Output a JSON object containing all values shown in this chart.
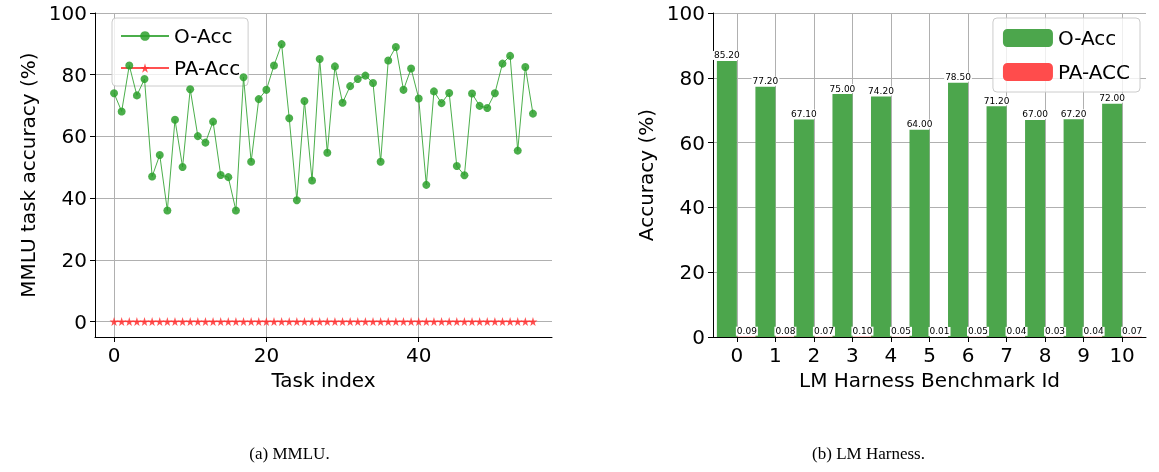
{
  "chart_data": [
    {
      "type": "line",
      "xlabel": "Task index",
      "ylabel": "MMLU task accuracy (%)",
      "annotations": [
        "(a) MMLU."
      ],
      "xlim": [
        -2.5,
        57.5
      ],
      "xticks": [
        0,
        20,
        40
      ],
      "ylim": [
        -5,
        100
      ],
      "yticks": [
        0,
        20,
        40,
        60,
        80,
        100
      ],
      "grid": true,
      "legend": "top left",
      "line_style": "solid",
      "x": [
        0,
        1,
        2,
        3,
        4,
        5,
        6,
        7,
        8,
        9,
        10,
        11,
        12,
        13,
        14,
        15,
        16,
        17,
        18,
        19,
        20,
        21,
        22,
        23,
        24,
        25,
        26,
        27,
        28,
        29,
        30,
        31,
        32,
        33,
        34,
        35,
        36,
        37,
        38,
        39,
        40,
        41,
        42,
        43,
        44,
        45,
        46,
        47,
        48,
        49,
        50,
        51,
        52,
        53,
        54,
        55
      ],
      "series": [
        {
          "name": "O-Acc",
          "color": "#2ca02c",
          "marker": "circle",
          "values": [
            74.0,
            68.1,
            83.0,
            73.3,
            78.6,
            47.0,
            54.0,
            36.0,
            65.4,
            50.1,
            75.3,
            60.1,
            58.0,
            64.8,
            47.5,
            46.8,
            36.0,
            79.2,
            51.8,
            72.1,
            75.1,
            83.0,
            89.9,
            65.9,
            39.3,
            71.5,
            45.7,
            85.1,
            54.7,
            82.7,
            70.9,
            76.3,
            78.6,
            79.7,
            77.3,
            51.8,
            84.6,
            89.0,
            75.1,
            82.0,
            72.3,
            44.3,
            74.6,
            70.8,
            74.1,
            50.4,
            47.4,
            73.9,
            69.9,
            69.2,
            74.0,
            83.6,
            86.1,
            55.4,
            82.5,
            67.4
          ]
        },
        {
          "name": "PA-Acc",
          "color": "#ff3333",
          "marker": "star",
          "values": [
            0,
            0,
            0,
            0,
            0,
            0,
            0,
            0,
            0,
            0,
            0,
            0,
            0,
            0,
            0,
            0,
            0,
            0,
            0,
            0,
            0,
            0,
            0,
            0,
            0,
            0,
            0,
            0,
            0,
            0,
            0,
            0,
            0,
            0,
            0,
            0,
            0,
            0,
            0,
            0,
            0,
            0,
            0,
            0,
            0,
            0,
            0,
            0,
            0,
            0,
            0,
            0,
            0,
            0,
            0,
            0
          ]
        }
      ]
    },
    {
      "type": "bar",
      "xlabel": "LM Harness Benchmark Id",
      "ylabel": "Accuracy (%)",
      "annotations": [
        "(b) LM Harness."
      ],
      "categories": [
        "0",
        "1",
        "2",
        "3",
        "4",
        "5",
        "6",
        "7",
        "8",
        "9",
        "10"
      ],
      "ylim": [
        0,
        100
      ],
      "yticks": [
        0,
        20,
        40,
        60,
        80,
        100
      ],
      "grid": true,
      "legend": "top right",
      "series": [
        {
          "name": "O-Acc",
          "color": "#4ca64c",
          "values": [
            85.2,
            77.2,
            67.1,
            75.0,
            74.2,
            64.0,
            78.5,
            71.2,
            67.0,
            67.2,
            72.0
          ],
          "value_labels": [
            "85.20",
            "77.20",
            "67.10",
            "75.00",
            "74.20",
            "64.00",
            "78.50",
            "71.20",
            "67.00",
            "67.20",
            "72.00"
          ]
        },
        {
          "name": "PA-ACC",
          "color": "#ff4c4c",
          "values": [
            0.09,
            0.08,
            0.07,
            0.1,
            0.05,
            0.01,
            0.05,
            0.04,
            0.03,
            0.04,
            0.07
          ],
          "value_labels": [
            "0.09",
            "0.08",
            "0.07",
            "0.10",
            "0.05",
            "0.01",
            "0.05",
            "0.04",
            "0.03",
            "0.04",
            "0.07"
          ]
        }
      ]
    }
  ]
}
